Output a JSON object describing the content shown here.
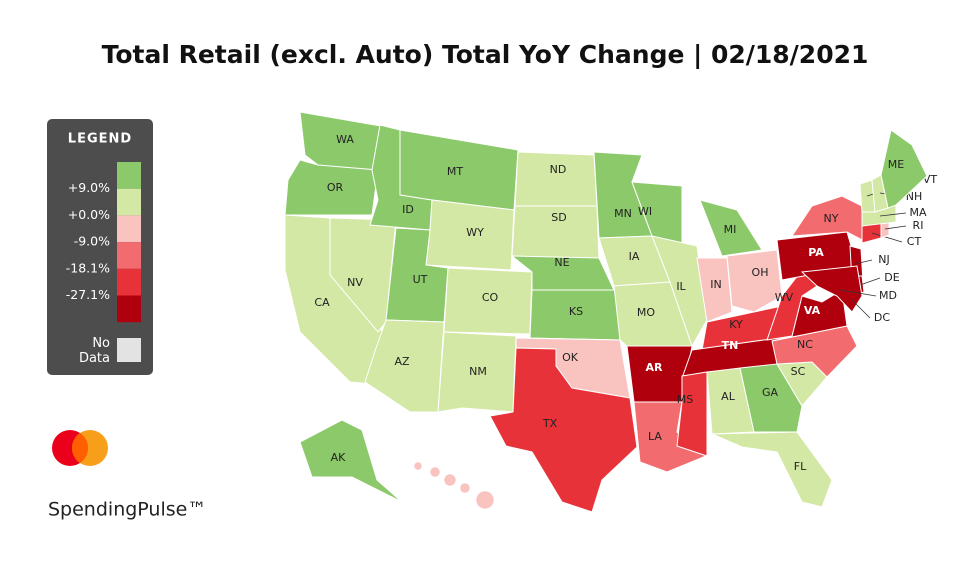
{
  "title": "Total Retail (excl. Auto) Total YoY Change | 02/18/2021",
  "brand": "SpendingPulse™",
  "legend": {
    "title": "LEGEND",
    "colors": [
      "#8cc96a",
      "#d4e8a5",
      "#f9c3c0",
      "#f26b6f",
      "#e8323a",
      "#b0000d"
    ],
    "labels": [
      "+9.0%",
      "+0.0%",
      "-9.0%",
      "-18.1%",
      "-27.1%"
    ],
    "no_data": {
      "label": "No Data",
      "color": "#e3e3e3"
    }
  },
  "states": [
    {
      "label": "WA",
      "color": "#8cc96a"
    },
    {
      "label": "OR",
      "color": "#8cc96a"
    },
    {
      "label": "CA",
      "color": "#d4e8a5"
    },
    {
      "label": "NV",
      "color": "#d4e8a5"
    },
    {
      "label": "ID",
      "color": "#8cc96a"
    },
    {
      "label": "MT",
      "color": "#8cc96a"
    },
    {
      "label": "WY",
      "color": "#d4e8a5"
    },
    {
      "label": "UT",
      "color": "#8cc96a"
    },
    {
      "label": "AZ",
      "color": "#d4e8a5"
    },
    {
      "label": "CO",
      "color": "#d4e8a5"
    },
    {
      "label": "NM",
      "color": "#d4e8a5"
    },
    {
      "label": "ND",
      "color": "#d4e8a5"
    },
    {
      "label": "SD",
      "color": "#d4e8a5"
    },
    {
      "label": "NE",
      "color": "#8cc96a"
    },
    {
      "label": "KS",
      "color": "#8cc96a"
    },
    {
      "label": "OK",
      "color": "#f9c3c0"
    },
    {
      "label": "TX",
      "color": "#e8323a"
    },
    {
      "label": "MN",
      "color": "#8cc96a"
    },
    {
      "label": "IA",
      "color": "#d4e8a5"
    },
    {
      "label": "MO",
      "color": "#d4e8a5"
    },
    {
      "label": "AR",
      "color": "#b0000d"
    },
    {
      "label": "LA",
      "color": "#f26b6f"
    },
    {
      "label": "WI",
      "color": "#8cc96a"
    },
    {
      "label": "IL",
      "color": "#d4e8a5"
    },
    {
      "label": "MI",
      "color": "#8cc96a"
    },
    {
      "label": "IN",
      "color": "#f9c3c0"
    },
    {
      "label": "OH",
      "color": "#f9c3c0"
    },
    {
      "label": "KY",
      "color": "#e8323a"
    },
    {
      "label": "TN",
      "color": "#b0000d"
    },
    {
      "label": "MS",
      "color": "#e8323a"
    },
    {
      "label": "AL",
      "color": "#d4e8a5"
    },
    {
      "label": "GA",
      "color": "#8cc96a"
    },
    {
      "label": "FL",
      "color": "#d4e8a5"
    },
    {
      "label": "SC",
      "color": "#d4e8a5"
    },
    {
      "label": "NC",
      "color": "#f26b6f"
    },
    {
      "label": "VA",
      "color": "#b0000d"
    },
    {
      "label": "WV",
      "color": "#e8323a"
    },
    {
      "label": "PA",
      "color": "#b0000d"
    },
    {
      "label": "NY",
      "color": "#f26b6f"
    },
    {
      "label": "NJ",
      "color": "#b0000d"
    },
    {
      "label": "DE",
      "color": "#b0000d"
    },
    {
      "label": "MD",
      "color": "#b0000d"
    },
    {
      "label": "CT",
      "color": "#e8323a"
    },
    {
      "label": "RI",
      "color": "#f9c3c0"
    },
    {
      "label": "MA",
      "color": "#d4e8a5"
    },
    {
      "label": "VT",
      "color": "#d4e8a5"
    },
    {
      "label": "NH",
      "color": "#d4e8a5"
    },
    {
      "label": "ME",
      "color": "#8cc96a"
    },
    {
      "label": "AK",
      "color": "#8cc96a"
    },
    {
      "label": "DC"
    },
    {
      "color": "#f9c3c0"
    }
  ]
}
